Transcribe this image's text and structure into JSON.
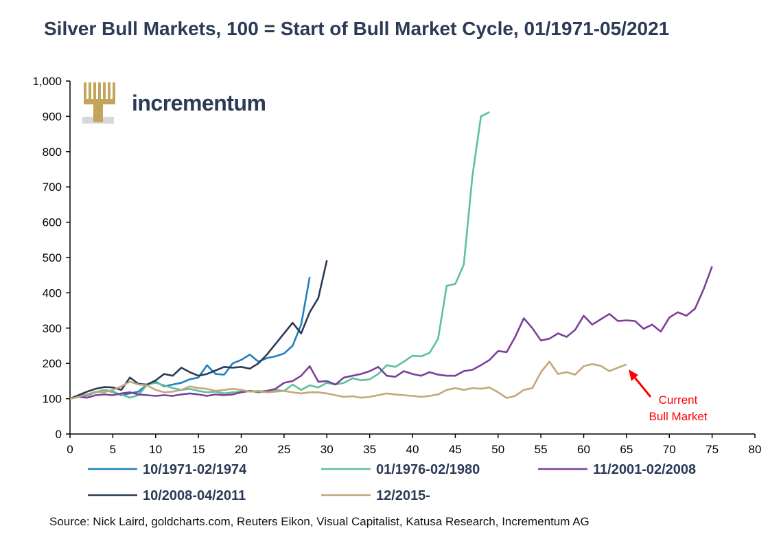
{
  "title": "Silver Bull Markets, 100 = Start of Bull Market Cycle, 01/1971-05/2021",
  "logo": {
    "text": "incrementum"
  },
  "source": "Source: Nick Laird, goldcharts.com, Reuters Eikon, Visual Capitalist, Katusa Research, Incrementum AG",
  "annotation": {
    "text_lines": [
      "Current",
      "Bull Market"
    ],
    "color": "#ff0000"
  },
  "chart_data": {
    "type": "line",
    "title": "Silver Bull Markets, 100 = Start of Bull Market Cycle, 01/1971-05/2021",
    "xlim": [
      0,
      80
    ],
    "ylim": [
      0,
      1000
    ],
    "x_ticks": [
      "0",
      "5",
      "10",
      "15",
      "20",
      "25",
      "30",
      "35",
      "40",
      "45",
      "50",
      "55",
      "60",
      "65",
      "70",
      "75",
      "80"
    ],
    "y_ticks": [
      "0",
      "100",
      "200",
      "300",
      "400",
      "500",
      "600",
      "700",
      "800",
      "900",
      "1,000"
    ],
    "grid": false,
    "legend_position": "bottom",
    "series": [
      {
        "name": "10/1971-02/1974",
        "color": "#1f7fbf",
        "values": [
          [
            0,
            100
          ],
          [
            1,
            105
          ],
          [
            2,
            110
          ],
          [
            3,
            118
          ],
          [
            4,
            125
          ],
          [
            5,
            120
          ],
          [
            6,
            110
          ],
          [
            7,
            115
          ],
          [
            8,
            120
          ],
          [
            9,
            140
          ],
          [
            10,
            148
          ],
          [
            11,
            135
          ],
          [
            12,
            140
          ],
          [
            13,
            145
          ],
          [
            14,
            155
          ],
          [
            15,
            160
          ],
          [
            16,
            195
          ],
          [
            17,
            170
          ],
          [
            18,
            168
          ],
          [
            19,
            200
          ],
          [
            20,
            210
          ],
          [
            21,
            225
          ],
          [
            22,
            205
          ],
          [
            23,
            215
          ],
          [
            24,
            220
          ],
          [
            25,
            228
          ],
          [
            26,
            250
          ],
          [
            27,
            310
          ],
          [
            28,
            445
          ]
        ]
      },
      {
        "name": "01/1976-02/1980",
        "color": "#5dbf9c",
        "values": [
          [
            0,
            100
          ],
          [
            1,
            108
          ],
          [
            2,
            112
          ],
          [
            3,
            118
          ],
          [
            4,
            125
          ],
          [
            5,
            118
          ],
          [
            6,
            112
          ],
          [
            7,
            103
          ],
          [
            8,
            110
          ],
          [
            9,
            140
          ],
          [
            10,
            145
          ],
          [
            11,
            138
          ],
          [
            12,
            130
          ],
          [
            13,
            125
          ],
          [
            14,
            128
          ],
          [
            15,
            122
          ],
          [
            16,
            118
          ],
          [
            17,
            120
          ],
          [
            18,
            115
          ],
          [
            19,
            118
          ],
          [
            20,
            120
          ],
          [
            21,
            122
          ],
          [
            22,
            118
          ],
          [
            23,
            120
          ],
          [
            24,
            125
          ],
          [
            25,
            122
          ],
          [
            26,
            140
          ],
          [
            27,
            125
          ],
          [
            28,
            138
          ],
          [
            29,
            132
          ],
          [
            30,
            145
          ],
          [
            31,
            140
          ],
          [
            32,
            145
          ],
          [
            33,
            158
          ],
          [
            34,
            152
          ],
          [
            35,
            155
          ],
          [
            36,
            170
          ],
          [
            37,
            195
          ],
          [
            38,
            190
          ],
          [
            39,
            205
          ],
          [
            40,
            222
          ],
          [
            41,
            220
          ],
          [
            42,
            230
          ],
          [
            43,
            270
          ],
          [
            44,
            420
          ],
          [
            45,
            425
          ],
          [
            46,
            480
          ],
          [
            47,
            730
          ],
          [
            48,
            900
          ],
          [
            49,
            912
          ]
        ]
      },
      {
        "name": "11/2001-02/2008",
        "color": "#7b3f99",
        "values": [
          [
            0,
            100
          ],
          [
            1,
            105
          ],
          [
            2,
            103
          ],
          [
            3,
            110
          ],
          [
            4,
            112
          ],
          [
            5,
            110
          ],
          [
            6,
            115
          ],
          [
            7,
            118
          ],
          [
            8,
            112
          ],
          [
            9,
            110
          ],
          [
            10,
            108
          ],
          [
            11,
            110
          ],
          [
            12,
            108
          ],
          [
            13,
            112
          ],
          [
            14,
            115
          ],
          [
            15,
            112
          ],
          [
            16,
            108
          ],
          [
            17,
            112
          ],
          [
            18,
            110
          ],
          [
            19,
            112
          ],
          [
            20,
            118
          ],
          [
            21,
            122
          ],
          [
            22,
            120
          ],
          [
            23,
            122
          ],
          [
            24,
            128
          ],
          [
            25,
            145
          ],
          [
            26,
            150
          ],
          [
            27,
            165
          ],
          [
            28,
            192
          ],
          [
            29,
            148
          ],
          [
            30,
            150
          ],
          [
            31,
            140
          ],
          [
            32,
            160
          ],
          [
            33,
            165
          ],
          [
            34,
            170
          ],
          [
            35,
            178
          ],
          [
            36,
            190
          ],
          [
            37,
            165
          ],
          [
            38,
            162
          ],
          [
            39,
            178
          ],
          [
            40,
            170
          ],
          [
            41,
            165
          ],
          [
            42,
            175
          ],
          [
            43,
            168
          ],
          [
            44,
            165
          ],
          [
            45,
            165
          ],
          [
            46,
            178
          ],
          [
            47,
            182
          ],
          [
            48,
            195
          ],
          [
            49,
            210
          ],
          [
            50,
            235
          ],
          [
            51,
            232
          ],
          [
            52,
            275
          ],
          [
            53,
            328
          ],
          [
            54,
            300
          ],
          [
            55,
            265
          ],
          [
            56,
            270
          ],
          [
            57,
            285
          ],
          [
            58,
            275
          ],
          [
            59,
            295
          ],
          [
            60,
            335
          ],
          [
            61,
            310
          ],
          [
            62,
            325
          ],
          [
            63,
            340
          ],
          [
            64,
            320
          ],
          [
            65,
            322
          ],
          [
            66,
            320
          ],
          [
            67,
            298
          ],
          [
            68,
            310
          ],
          [
            69,
            290
          ],
          [
            70,
            330
          ],
          [
            71,
            345
          ],
          [
            72,
            335
          ],
          [
            73,
            355
          ],
          [
            74,
            410
          ],
          [
            75,
            475
          ]
        ]
      },
      {
        "name": "10/2008-04/2011",
        "color": "#2b3a55",
        "values": [
          [
            0,
            100
          ],
          [
            1,
            110
          ],
          [
            2,
            120
          ],
          [
            3,
            128
          ],
          [
            4,
            133
          ],
          [
            5,
            132
          ],
          [
            6,
            125
          ],
          [
            7,
            160
          ],
          [
            8,
            142
          ],
          [
            9,
            140
          ],
          [
            10,
            152
          ],
          [
            11,
            170
          ],
          [
            12,
            165
          ],
          [
            13,
            188
          ],
          [
            14,
            175
          ],
          [
            15,
            165
          ],
          [
            16,
            170
          ],
          [
            17,
            180
          ],
          [
            18,
            190
          ],
          [
            19,
            188
          ],
          [
            20,
            190
          ],
          [
            21,
            185
          ],
          [
            22,
            200
          ],
          [
            23,
            225
          ],
          [
            24,
            255
          ],
          [
            25,
            285
          ],
          [
            26,
            315
          ],
          [
            27,
            285
          ],
          [
            28,
            345
          ],
          [
            29,
            385
          ],
          [
            30,
            492
          ]
        ]
      },
      {
        "name": "12/2015-",
        "color": "#c2a878",
        "values": [
          [
            0,
            100
          ],
          [
            1,
            105
          ],
          [
            2,
            112
          ],
          [
            3,
            120
          ],
          [
            4,
            118
          ],
          [
            5,
            125
          ],
          [
            6,
            135
          ],
          [
            7,
            148
          ],
          [
            8,
            140
          ],
          [
            9,
            138
          ],
          [
            10,
            125
          ],
          [
            11,
            118
          ],
          [
            12,
            120
          ],
          [
            13,
            125
          ],
          [
            14,
            135
          ],
          [
            15,
            130
          ],
          [
            16,
            128
          ],
          [
            17,
            122
          ],
          [
            18,
            125
          ],
          [
            19,
            128
          ],
          [
            20,
            125
          ],
          [
            21,
            120
          ],
          [
            22,
            122
          ],
          [
            23,
            118
          ],
          [
            24,
            120
          ],
          [
            25,
            122
          ],
          [
            26,
            118
          ],
          [
            27,
            115
          ],
          [
            28,
            118
          ],
          [
            29,
            118
          ],
          [
            30,
            115
          ],
          [
            31,
            110
          ],
          [
            32,
            105
          ],
          [
            33,
            107
          ],
          [
            34,
            103
          ],
          [
            35,
            105
          ],
          [
            36,
            110
          ],
          [
            37,
            115
          ],
          [
            38,
            112
          ],
          [
            39,
            110
          ],
          [
            40,
            108
          ],
          [
            41,
            105
          ],
          [
            42,
            108
          ],
          [
            43,
            112
          ],
          [
            44,
            125
          ],
          [
            45,
            130
          ],
          [
            46,
            125
          ],
          [
            47,
            130
          ],
          [
            48,
            128
          ],
          [
            49,
            132
          ],
          [
            50,
            118
          ],
          [
            51,
            102
          ],
          [
            52,
            108
          ],
          [
            53,
            125
          ],
          [
            54,
            130
          ],
          [
            55,
            175
          ],
          [
            56,
            205
          ],
          [
            57,
            170
          ],
          [
            58,
            175
          ],
          [
            59,
            168
          ],
          [
            60,
            192
          ],
          [
            61,
            198
          ],
          [
            62,
            193
          ],
          [
            63,
            178
          ],
          [
            64,
            188
          ],
          [
            65,
            197
          ]
        ]
      }
    ],
    "legend_rows": [
      [
        "10/1971-02/1974",
        "01/1976-02/1980",
        "11/2001-02/2008"
      ],
      [
        "10/2008-04/2011",
        "12/2015-"
      ]
    ]
  }
}
